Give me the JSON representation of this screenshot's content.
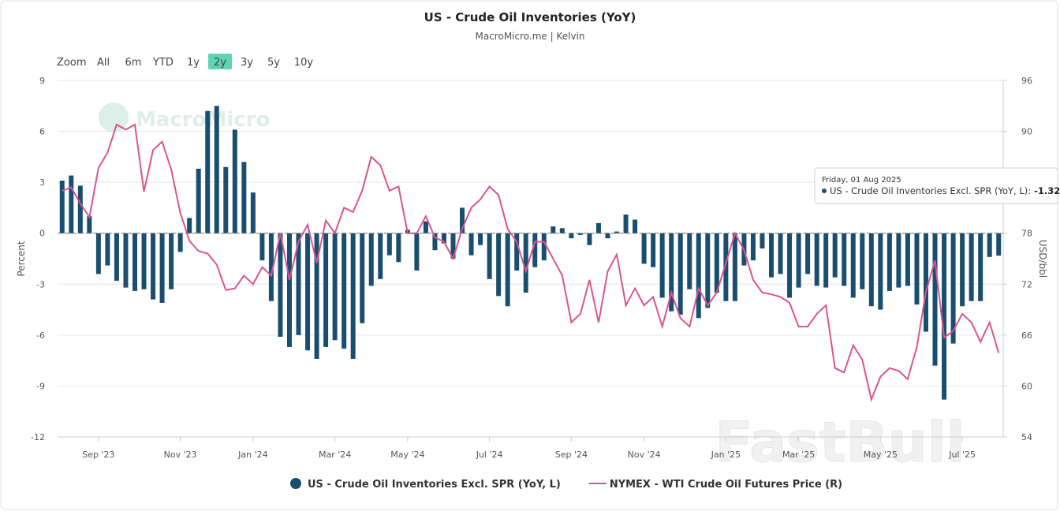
{
  "chart_data": {
    "type": "combo",
    "title": "US - Crude Oil Inventories (YoY)",
    "subtitle": "MacroMicro.me | Kelvin",
    "watermarks": [
      "MacroMicro",
      "FastBull"
    ],
    "range_selector": {
      "label": "Zoom",
      "buttons": [
        "All",
        "6m",
        "YTD",
        "1y",
        "2y",
        "3y",
        "5y",
        "10y"
      ],
      "selected": "2y"
    },
    "y_label": "Percent",
    "y2_label": "USD/bbl",
    "categories": [
      null,
      null,
      null,
      null,
      "Sep '23",
      null,
      null,
      null,
      null,
      null,
      null,
      null,
      null,
      "Nov '23",
      null,
      null,
      null,
      null,
      null,
      null,
      null,
      "Jan '24",
      null,
      null,
      null,
      null,
      null,
      null,
      null,
      null,
      "Mar '24",
      null,
      null,
      null,
      null,
      null,
      null,
      null,
      "May '24",
      null,
      null,
      null,
      null,
      null,
      null,
      null,
      null,
      "Jul '24",
      null,
      null,
      null,
      null,
      null,
      null,
      null,
      null,
      "Sep '24",
      null,
      null,
      null,
      null,
      null,
      null,
      null,
      "Nov '24",
      null,
      null,
      null,
      null,
      null,
      null,
      null,
      null,
      "Jan '25",
      null,
      null,
      null,
      null,
      null,
      null,
      null,
      "Mar '25",
      null,
      null,
      null,
      null,
      null,
      null,
      null,
      null,
      "May '25",
      null,
      null,
      null,
      null,
      null,
      null,
      null,
      null,
      "Jul '25",
      null,
      null,
      null,
      null
    ],
    "series": [
      {
        "name": "US - Crude Oil Inventories Excl. SPR (YoY, L)",
        "type": "bar",
        "color": "#1a4e6e",
        "values": [
          3.1,
          3.4,
          2.8,
          1.0,
          -2.4,
          -1.9,
          -2.8,
          -3.2,
          -3.4,
          -3.3,
          -3.9,
          -4.1,
          -3.3,
          -1.1,
          0.9,
          3.8,
          7.2,
          7.5,
          3.9,
          6.1,
          4.2,
          2.4,
          -1.6,
          -4.0,
          -6.1,
          -6.7,
          -6.0,
          -6.9,
          -7.4,
          -6.7,
          -6.3,
          -6.8,
          -7.4,
          -5.3,
          -3.1,
          -2.7,
          -1.3,
          -1.7,
          0.2,
          -2.2,
          0.7,
          -1.0,
          -0.6,
          -1.5,
          1.5,
          -1.3,
          -0.7,
          -2.7,
          -3.7,
          -4.3,
          -2.2,
          -3.5,
          -2.0,
          -1.6,
          0.4,
          0.3,
          -0.3,
          -0.1,
          -0.7,
          0.6,
          -0.3,
          0.1,
          1.1,
          0.8,
          -1.8,
          -2.0,
          -3.8,
          -4.6,
          -4.8,
          -3.3,
          -5.0,
          -4.4,
          -3.5,
          -4.0,
          -4.0,
          -1.9,
          -1.6,
          -0.9,
          -2.6,
          -2.4,
          -3.8,
          -3.2,
          -2.4,
          -3.1,
          -3.2,
          -2.6,
          -3.1,
          -3.8,
          -3.3,
          -4.3,
          -4.5,
          -3.4,
          -3.2,
          -3.1,
          -4.2,
          -5.8,
          -7.8,
          -9.8,
          -6.5,
          -4.3,
          -4.0,
          -4.0,
          -1.4,
          -1.32
        ]
      },
      {
        "name": "NYMEX - WTI Crude Oil Futures Price (R)",
        "type": "line",
        "axis": "y2",
        "color": "#d9558f",
        "values": [
          83.0,
          83.4,
          81.5,
          79.9,
          85.7,
          87.5,
          90.8,
          90.2,
          90.8,
          82.9,
          87.8,
          88.8,
          85.5,
          80.4,
          77.1,
          75.9,
          75.6,
          74.3,
          71.3,
          71.5,
          73.0,
          72.0,
          74.0,
          73.0,
          78.0,
          72.5,
          77.0,
          79.0,
          74.5,
          79.5,
          78.0,
          81.0,
          80.5,
          83.0,
          87.0,
          86.0,
          83.0,
          83.5,
          78.0,
          78.0,
          80.0,
          77.5,
          77.0,
          75.0,
          78.5,
          81.0,
          82.0,
          83.5,
          82.5,
          78.5,
          77.0,
          73.5,
          77.0,
          77.0,
          75.0,
          73.0,
          67.5,
          68.5,
          72.5,
          67.5,
          73.5,
          75.5,
          69.5,
          71.5,
          69.5,
          70.5,
          67.0,
          71.0,
          68.0,
          67.0,
          71.5,
          69.5,
          71.0,
          74.5,
          78.0,
          76.0,
          72.5,
          71.0,
          70.8,
          70.5,
          69.8,
          67.0,
          67.0,
          68.5,
          69.5,
          62.1,
          61.6,
          64.8,
          63.1,
          58.4,
          61.1,
          62.1,
          61.8,
          60.8,
          64.6,
          71.1,
          74.8,
          65.7,
          66.5,
          68.5,
          67.5,
          65.2,
          67.5,
          63.9
        ]
      }
    ],
    "ylim": [
      -12,
      9
    ],
    "yticks": [
      -12,
      -9,
      -6,
      -3,
      0,
      3,
      6,
      9
    ],
    "y2lim": [
      54,
      96
    ],
    "y2ticks": [
      54,
      60,
      66,
      72,
      78,
      84,
      90,
      96
    ],
    "grid": true,
    "legend": "bottom",
    "tooltip": {
      "date": "Friday, 01 Aug 2025",
      "label": "US - Crude Oil Inventories Excl. SPR (YoY, L):",
      "index": 103
    }
  }
}
